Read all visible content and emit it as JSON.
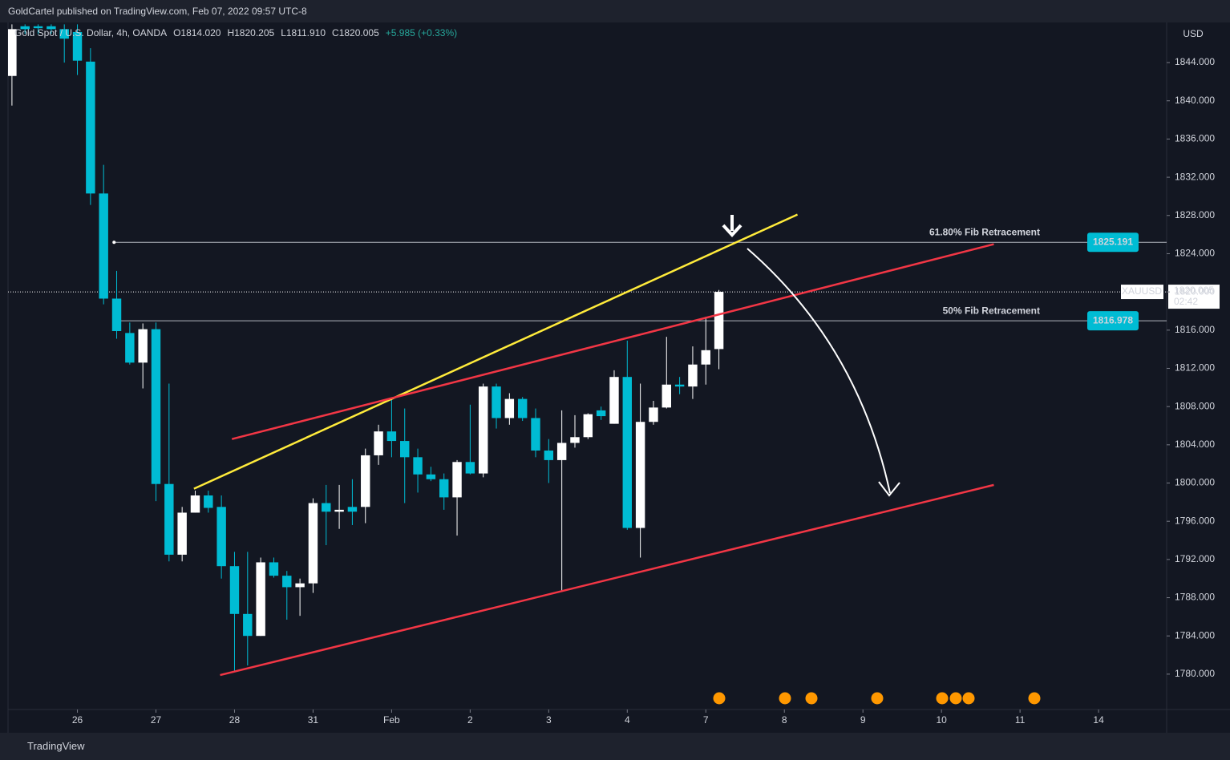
{
  "publisher_line": "GoldCartel published on TradingView.com, Feb 07, 2022 09:57 UTC-8",
  "brand": "TradingView",
  "chart_data": {
    "type": "candlestick",
    "legend_items": [
      "Gold Spot / U.S. Dollar, 4h, OANDA",
      "O1814.020",
      "H1820.205",
      "L1811.910",
      "C1820.005",
      "+5.985 (+0.33%)"
    ],
    "currency": "USD",
    "symbol_tag": "XAUUSD",
    "countdown": "02:42",
    "up_color": "#ffffff",
    "down_color": "#00bcd4",
    "open": [
      1842.6,
      1847.8,
      1847.8,
      1847.8,
      1847.5,
      1847.2,
      1844.1,
      1830.3,
      1819.3,
      1815.7,
      1812.6,
      1816.1,
      1799.9,
      1792.5,
      1796.9,
      1798.7,
      1797.5,
      1791.3,
      1786.3,
      1784.0,
      1791.7,
      1790.3,
      1789.1,
      1789.5,
      1797.9,
      1797.0,
      1797.5,
      1797.5,
      1802.9,
      1805.4,
      1804.4,
      1802.7,
      1800.9,
      1800.4,
      1798.5,
      1802.2,
      1801.0,
      1810.1,
      1806.8,
      1808.8,
      1806.8,
      1803.4,
      1802.4,
      1804.2,
      1804.8,
      1807.6,
      1806.2,
      1811.1,
      1795.3,
      1806.4,
      1807.9,
      1810.3,
      1810.1,
      1812.4,
      1814.02
    ],
    "high": [
      1848.0,
      1848.0,
      1848.0,
      1848.0,
      1848.0,
      1848.0,
      1845.5,
      1833.3,
      1822.2,
      1816.8,
      1816.7,
      1816.8,
      1810.4,
      1797.5,
      1799.2,
      1799.2,
      1798.7,
      1792.8,
      1792.8,
      1792.2,
      1792.2,
      1790.8,
      1790.0,
      1798.4,
      1799.8,
      1799.8,
      1800.4,
      1803.6,
      1806.1,
      1808.8,
      1807.8,
      1803.6,
      1801.7,
      1801.0,
      1802.4,
      1808.2,
      1810.4,
      1810.4,
      1809.4,
      1809.0,
      1807.8,
      1804.6,
      1807.6,
      1807.1,
      1807.3,
      1808.0,
      1811.8,
      1814.9,
      1810.4,
      1808.6,
      1815.3,
      1811.1,
      1814.3,
      1817.4,
      1820.205
    ],
    "low": [
      1839.5,
      1847.0,
      1847.0,
      1847.0,
      1844.0,
      1842.7,
      1829.1,
      1818.7,
      1815.1,
      1812.4,
      1809.9,
      1798.1,
      1791.8,
      1791.8,
      1796.9,
      1796.9,
      1790.0,
      1780.2,
      1780.9,
      1784.0,
      1790.1,
      1785.7,
      1786.1,
      1788.5,
      1793.5,
      1795.2,
      1795.6,
      1795.8,
      1801.9,
      1802.7,
      1797.9,
      1799.0,
      1800.2,
      1797.2,
      1794.5,
      1800.9,
      1800.6,
      1805.7,
      1806.1,
      1806.5,
      1802.7,
      1800.0,
      1788.6,
      1803.7,
      1804.6,
      1806.6,
      1806.2,
      1795.1,
      1792.2,
      1806.1,
      1807.8,
      1809.3,
      1808.8,
      1810.3,
      1811.91
    ],
    "close": [
      1847.5,
      1847.5,
      1847.6,
      1847.5,
      1846.5,
      1844.2,
      1830.3,
      1819.3,
      1815.9,
      1812.6,
      1816.1,
      1799.9,
      1792.5,
      1796.9,
      1798.7,
      1797.4,
      1791.3,
      1786.3,
      1784.0,
      1791.7,
      1790.3,
      1789.1,
      1789.5,
      1797.9,
      1797.0,
      1797.2,
      1797.0,
      1802.9,
      1805.4,
      1804.4,
      1802.7,
      1800.9,
      1800.4,
      1798.5,
      1802.2,
      1801.0,
      1810.1,
      1806.8,
      1808.8,
      1806.8,
      1803.4,
      1802.4,
      1804.2,
      1804.8,
      1807.2,
      1807.0,
      1811.1,
      1795.3,
      1806.4,
      1807.9,
      1810.3,
      1810.1,
      1812.4,
      1813.9,
      1820.005
    ],
    "xlim": [
      -0.3,
      88.2
    ],
    "xticks": [
      {
        "value": 5,
        "label": "26"
      },
      {
        "value": 11,
        "label": "27"
      },
      {
        "value": 17,
        "label": "28"
      },
      {
        "value": 23,
        "label": "31"
      },
      {
        "value": 29,
        "label": "Feb"
      },
      {
        "value": 35,
        "label": "2"
      },
      {
        "value": 41,
        "label": "3"
      },
      {
        "value": 47,
        "label": "4"
      },
      {
        "value": 53,
        "label": "7"
      },
      {
        "value": 59,
        "label": "8"
      },
      {
        "value": 65,
        "label": "9"
      },
      {
        "value": 71,
        "label": "10"
      },
      {
        "value": 77,
        "label": "11"
      },
      {
        "value": 83,
        "label": "14"
      }
    ],
    "ylim": [
      1776.3,
      1848.2
    ],
    "yticks": [
      {
        "value": 1780,
        "label": "1780.000"
      },
      {
        "value": 1784,
        "label": "1784.000"
      },
      {
        "value": 1788,
        "label": "1788.000"
      },
      {
        "value": 1792,
        "label": "1792.000"
      },
      {
        "value": 1796,
        "label": "1796.000"
      },
      {
        "value": 1800,
        "label": "1800.000"
      },
      {
        "value": 1804,
        "label": "1804.000"
      },
      {
        "value": 1808,
        "label": "1808.000"
      },
      {
        "value": 1812,
        "label": "1812.000"
      },
      {
        "value": 1816,
        "label": "1816.000"
      },
      {
        "value": 1820,
        "label": "1820.000"
      },
      {
        "value": 1824,
        "label": "1824.000"
      },
      {
        "value": 1828,
        "label": "1828.000"
      },
      {
        "value": 1832,
        "label": "1832.000"
      },
      {
        "value": 1836,
        "label": "1836.000"
      },
      {
        "value": 1840,
        "label": "1840.000"
      },
      {
        "value": 1844,
        "label": "1844.000"
      }
    ],
    "grid": false,
    "fib_levels": [
      {
        "label": "61.80% Fib Retracement",
        "value": 1825.191,
        "x_start": 7.8
      },
      {
        "label": "50% Fib Retracement",
        "value": 1816.978,
        "x_start": 8.3
      }
    ],
    "trendlines": [
      {
        "color": "#ffeb3b",
        "x": [
          13.9,
          60.0
        ],
        "y": [
          1799.4,
          1828.1
        ]
      },
      {
        "color": "#f23645",
        "x": [
          16.8,
          75.0
        ],
        "y": [
          1804.6,
          1825.0
        ]
      },
      {
        "color": "#f23645",
        "x": [
          15.9,
          75.0
        ],
        "y": [
          1779.9,
          1799.8
        ]
      }
    ]
  }
}
